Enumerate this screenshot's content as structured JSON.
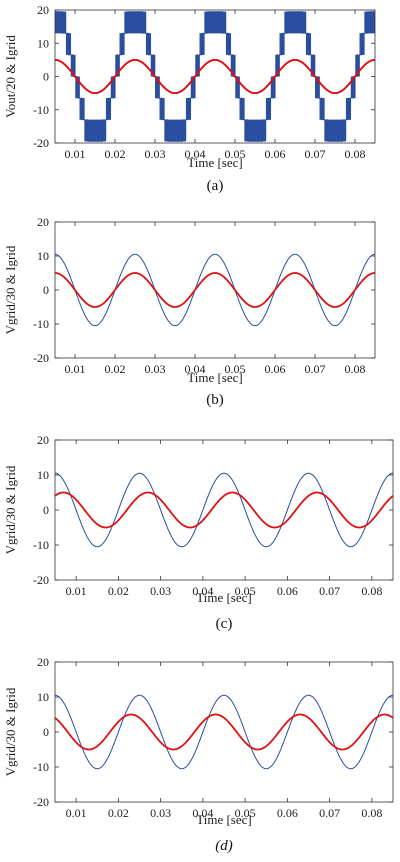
{
  "chart_data": [
    {
      "type": "line",
      "ylabel": "Vout/20  &  Igrid",
      "xlabel": "Time [sec]",
      "caption": "(a)",
      "caption_italic": false,
      "xlim": [
        0.005,
        0.085
      ],
      "ylim": [
        -20,
        20
      ],
      "xticks": [
        "0.01",
        "0.02",
        "0.03",
        "0.04",
        "0.05",
        "0.06",
        "0.07",
        "0.08"
      ],
      "yticks": [
        "-20",
        "-10",
        "0",
        "10",
        "20"
      ],
      "grid": false,
      "series": [
        {
          "waveform": "multilevel-staircase",
          "frequency_hz": 50,
          "levels": [
            -19.5,
            -13,
            -6.5,
            0,
            6.5,
            13,
            19.5
          ],
          "phase_deg": 0,
          "color": "#2a4ea0"
        },
        {
          "waveform": "sine",
          "frequency_hz": 50,
          "amplitude": 5,
          "phase_deg": 0,
          "color": "#e01010"
        }
      ]
    },
    {
      "type": "line",
      "ylabel": "Vgrid/30  &  Igrid",
      "xlabel": "Time [sec]",
      "caption": "(b)",
      "caption_italic": false,
      "xlim": [
        0.005,
        0.085
      ],
      "ylim": [
        -20,
        20
      ],
      "xticks": [
        "0.01",
        "0.02",
        "0.03",
        "0.04",
        "0.05",
        "0.06",
        "0.07",
        "0.08"
      ],
      "yticks": [
        "-20",
        "-10",
        "0",
        "10",
        "20"
      ],
      "grid": false,
      "series": [
        {
          "waveform": "sine",
          "frequency_hz": 50,
          "amplitude": 10.5,
          "phase_deg": 0,
          "color": "#2a4ea0"
        },
        {
          "waveform": "sine",
          "frequency_hz": 50,
          "amplitude": 5,
          "phase_deg": 0,
          "color": "#e01010"
        }
      ]
    },
    {
      "type": "line",
      "ylabel": "Vgrid/30  &  Igrid",
      "xlabel": "Time [sec]",
      "caption": "(c)",
      "caption_italic": false,
      "xlim": [
        0.005,
        0.085
      ],
      "ylim": [
        -20,
        20
      ],
      "xticks": [
        "0.01",
        "0.02",
        "0.03",
        "0.04",
        "0.05",
        "0.06",
        "0.07",
        "0.08"
      ],
      "yticks": [
        "-20",
        "-10",
        "0",
        "10",
        "20"
      ],
      "grid": false,
      "series": [
        {
          "waveform": "sine",
          "frequency_hz": 50,
          "amplitude": 10.5,
          "phase_deg": 0,
          "color": "#2a4ea0"
        },
        {
          "waveform": "sine",
          "frequency_hz": 50,
          "amplitude": 5,
          "phase_deg": -36,
          "color": "#e01010"
        }
      ]
    },
    {
      "type": "line",
      "ylabel": "Vgrid/30  &  Igrid",
      "xlabel": "Time [sec]",
      "caption": "(d)",
      "caption_italic": true,
      "xlim": [
        0.005,
        0.085
      ],
      "ylim": [
        -20,
        20
      ],
      "xticks": [
        "0.01",
        "0.02",
        "0.03",
        "0.04",
        "0.05",
        "0.06",
        "0.07",
        "0.08"
      ],
      "yticks": [
        "-20",
        "-10",
        "0",
        "10",
        "20"
      ],
      "grid": false,
      "series": [
        {
          "waveform": "sine",
          "frequency_hz": 50,
          "amplitude": 10.5,
          "phase_deg": 0,
          "color": "#2a4ea0"
        },
        {
          "waveform": "sine",
          "frequency_hz": 50,
          "amplitude": 5,
          "phase_deg": 36,
          "color": "#e01010"
        }
      ]
    }
  ]
}
